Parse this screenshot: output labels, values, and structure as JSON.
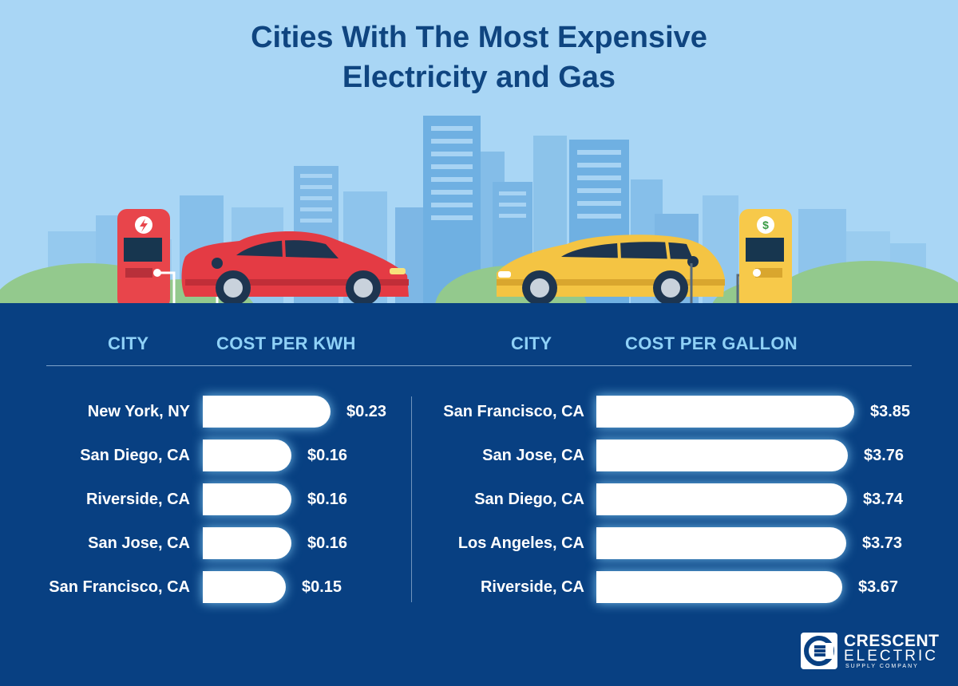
{
  "title_line1": "Cities With The Most Expensive",
  "title_line2": "Electricity and Gas",
  "colors": {
    "sky": "#a9d6f5",
    "panel": "#084082",
    "title": "#0f4580",
    "header": "#8fd1f7",
    "bar": "#ffffff",
    "electric_pump": "#e8454b",
    "gas_pump": "#f7c94a",
    "electric_car": "#e43b44",
    "gas_car": "#f4c443"
  },
  "icons": {
    "electric_pump": "lightning-bolt-icon",
    "gas_pump": "dollar-sign-icon"
  },
  "chart_data": [
    {
      "type": "bar",
      "orientation": "horizontal",
      "header_category": "CITY",
      "header_value": "COST PER KWH",
      "categories": [
        "New York, NY",
        "San Diego, CA",
        "Riverside, CA",
        "San Jose, CA",
        "San Francisco, CA"
      ],
      "values": [
        0.23,
        0.16,
        0.16,
        0.16,
        0.15
      ],
      "value_labels": [
        "$0.23",
        "$0.16",
        "$0.16",
        "$0.16",
        "$0.15"
      ],
      "xlim": [
        0,
        0.23
      ]
    },
    {
      "type": "bar",
      "orientation": "horizontal",
      "header_category": "CITY",
      "header_value": "COST PER GALLON",
      "categories": [
        "San Francisco, CA",
        "San Jose, CA",
        "San Diego, CA",
        "Los Angeles, CA",
        "Riverside, CA"
      ],
      "values": [
        3.85,
        3.76,
        3.74,
        3.73,
        3.67
      ],
      "value_labels": [
        "$3.85",
        "$3.76",
        "$3.74",
        "$3.73",
        "$3.67"
      ],
      "xlim": [
        0,
        3.85
      ]
    }
  ],
  "logo": {
    "line1": "CRESCENT",
    "line2": "ELECTRIC",
    "line3": "SUPPLY COMPANY"
  }
}
